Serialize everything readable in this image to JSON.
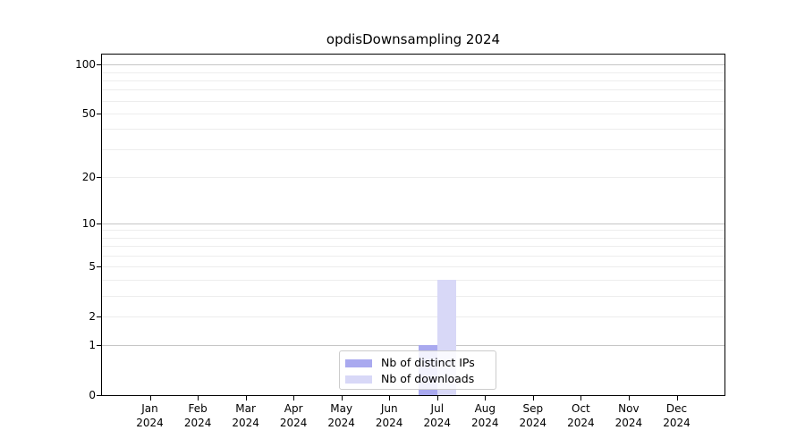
{
  "chart_data": {
    "type": "bar",
    "title": "opdisDownsampling 2024",
    "categories": [
      "Jan 2024",
      "Feb 2024",
      "Mar 2024",
      "Apr 2024",
      "May 2024",
      "Jun 2024",
      "Jul 2024",
      "Aug 2024",
      "Sep 2024",
      "Oct 2024",
      "Nov 2024",
      "Dec 2024"
    ],
    "series": [
      {
        "name": "Nb of distinct IPs",
        "color": "#a9a9ef",
        "values": [
          0,
          0,
          0,
          0,
          0,
          0,
          1,
          0,
          0,
          0,
          0,
          0
        ]
      },
      {
        "name": "Nb of downloads",
        "color": "#d8d8f7",
        "values": [
          0,
          0,
          0,
          0,
          0,
          0,
          4,
          0,
          0,
          0,
          0,
          0
        ]
      }
    ],
    "yscale": "log10(value+1)",
    "ylim": [
      0,
      115
    ],
    "yticks": [
      0,
      1,
      2,
      5,
      10,
      20,
      50,
      100
    ],
    "gridlines": {
      "major": [
        1,
        10,
        100
      ],
      "minor": [
        2,
        3,
        4,
        5,
        6,
        7,
        8,
        9,
        20,
        30,
        40,
        50,
        60,
        70,
        80,
        90
      ]
    },
    "legend_position": "lower center",
    "colors": {
      "spine": "#000000",
      "grid_major": "#c6c6c6",
      "grid_minor": "#ededed",
      "text": "#000000",
      "background": "#ffffff"
    }
  }
}
